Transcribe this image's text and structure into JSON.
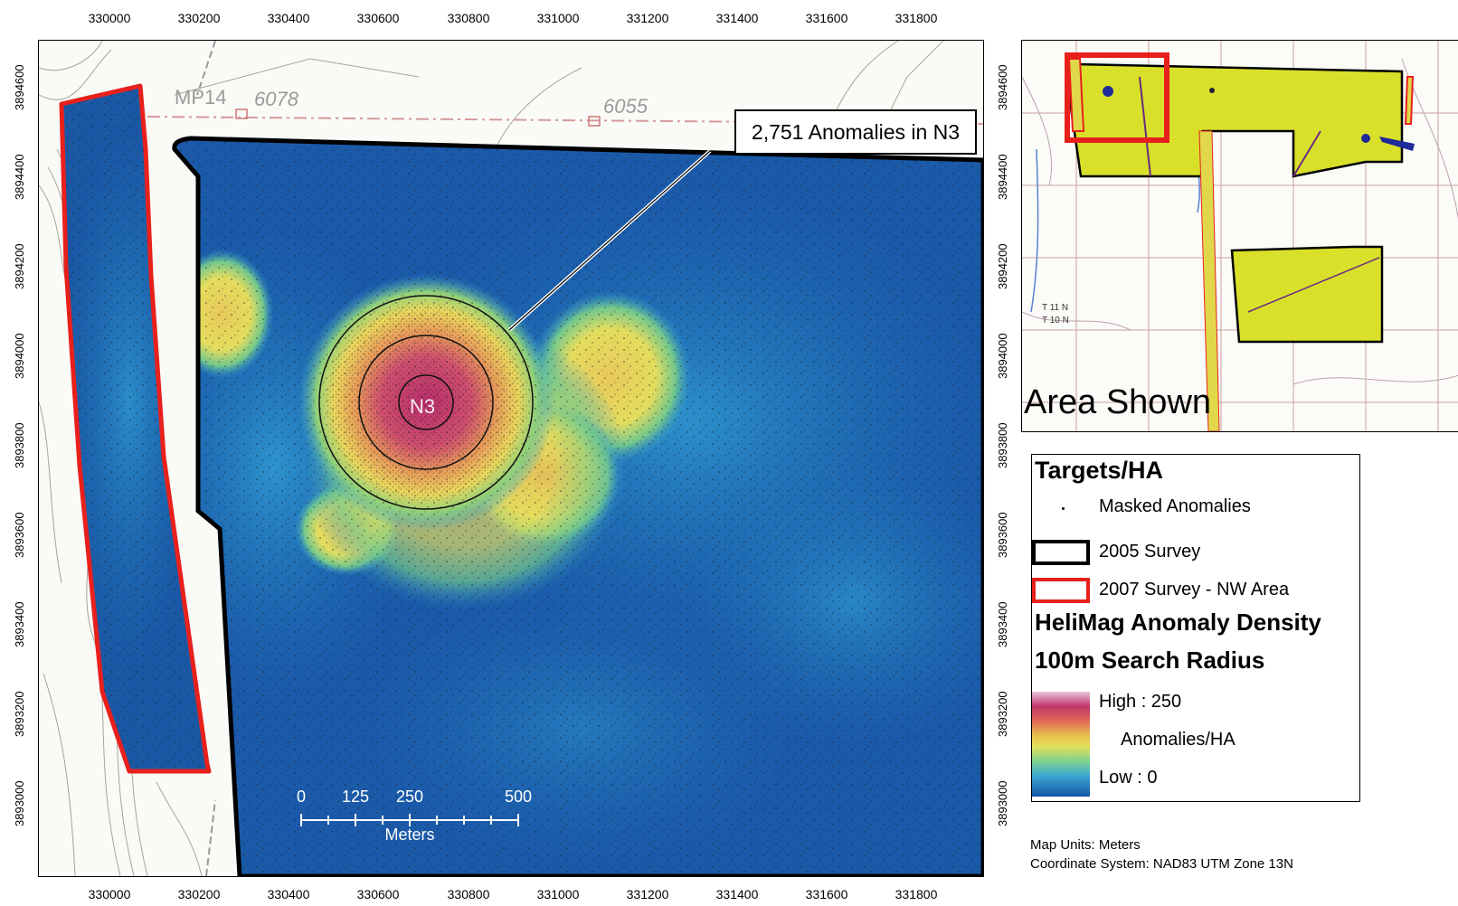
{
  "axes": {
    "x_ticks": [
      "330000",
      "330200",
      "330400",
      "330600",
      "330800",
      "331000",
      "331200",
      "331400",
      "331600",
      "331800"
    ],
    "y_ticks_main": [
      "3894600",
      "3894400",
      "3894200",
      "3894000",
      "3893800",
      "3893600",
      "3893400",
      "3893200",
      "3893000"
    ]
  },
  "main_map": {
    "topo_labels": [
      "MP14",
      "6078",
      "6055"
    ],
    "area_label": "N3",
    "callout": "2,751 Anomalies in N3",
    "scale_bar": {
      "ticks": [
        "0",
        "125",
        "250",
        "500"
      ],
      "unit": "Meters"
    }
  },
  "inset": {
    "label": "Area Shown",
    "township_labels": [
      "T 11 N",
      "T 10 N"
    ]
  },
  "legend": {
    "title": "Targets/HA",
    "items": [
      {
        "label": "Masked Anomalies"
      },
      {
        "label": "2005 Survey",
        "color": "#000000"
      },
      {
        "label": "2007 Survey - NW Area",
        "color": "#e8201c"
      }
    ],
    "density_title": "HeliMag Anomaly Density",
    "radius_title": "100m Search Radius",
    "high": "High : 250",
    "unit": "Anomalies/HA",
    "low": "Low : 0"
  },
  "footnotes": {
    "units": "Map Units: Meters",
    "crs": "Coordinate System: NAD83 UTM Zone 13N"
  },
  "colors": {
    "density_low": "#1456a8",
    "density_mid": "#e9dc57",
    "density_high": "#c2306a",
    "survey_2005": "#000000",
    "survey_2007": "#e8201c",
    "inset_fill": "#d9e02a"
  }
}
